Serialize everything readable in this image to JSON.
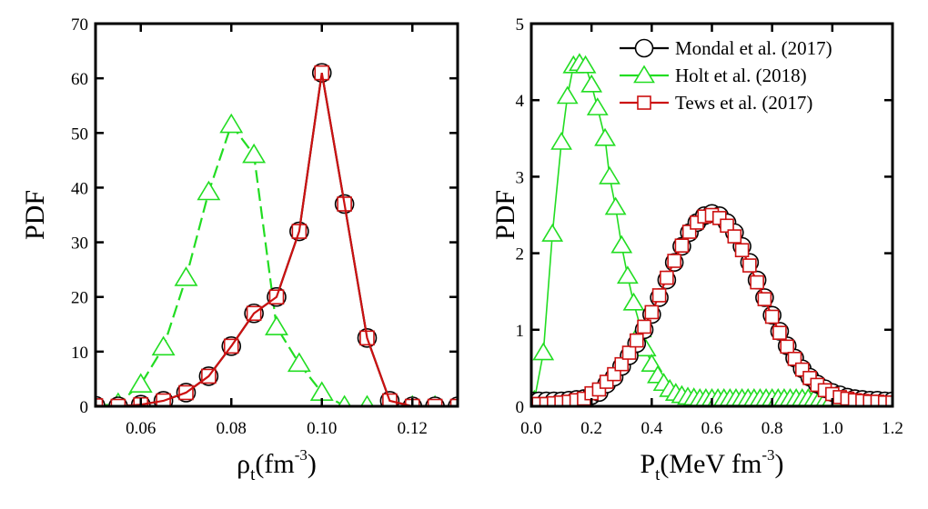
{
  "chart_data": [
    {
      "type": "line",
      "xlabel": {
        "main": "ρ",
        "sub": "t",
        "rest": "(fm",
        "sup": "-3",
        "close": ")"
      },
      "ylabel": "PDF",
      "xlim": [
        0.05,
        0.13
      ],
      "ylim": [
        0,
        70
      ],
      "xticks": [
        0.06,
        0.08,
        0.1,
        0.12
      ],
      "xtick_labels": [
        "0.06",
        "0.08",
        "0.10",
        "0.12"
      ],
      "yticks": [
        0,
        10,
        20,
        30,
        40,
        50,
        60,
        70
      ],
      "ytick_labels": [
        "0",
        "10",
        "20",
        "30",
        "40",
        "50",
        "60",
        "70"
      ],
      "grid": false,
      "series": [
        {
          "key": "holt",
          "x": [
            0.05,
            0.055,
            0.06,
            0.065,
            0.07,
            0.075,
            0.08,
            0.085,
            0.09,
            0.095,
            0.1,
            0.105,
            0.11,
            0.115,
            0.12,
            0.125,
            0.13
          ],
          "y": [
            0,
            0.5,
            4,
            10.8,
            23.5,
            39.2,
            51.5,
            46,
            14.5,
            7.8,
            2.5,
            0,
            0,
            0,
            0,
            0,
            0
          ]
        },
        {
          "key": "mondal",
          "x": [
            0.05,
            0.055,
            0.06,
            0.065,
            0.07,
            0.075,
            0.08,
            0.085,
            0.09,
            0.095,
            0.1,
            0.105,
            0.11,
            0.115,
            0.12,
            0.125,
            0.13
          ],
          "y": [
            0.1,
            0,
            0.3,
            1,
            2.5,
            5.5,
            11,
            17,
            20,
            32,
            61,
            37,
            12.5,
            1,
            0,
            0,
            0
          ]
        },
        {
          "key": "tews",
          "x": [
            0.05,
            0.055,
            0.06,
            0.065,
            0.07,
            0.075,
            0.08,
            0.085,
            0.09,
            0.095,
            0.1,
            0.105,
            0.11,
            0.115,
            0.12,
            0.125,
            0.13
          ],
          "y": [
            0.1,
            0,
            0.3,
            1,
            2.5,
            5.5,
            11,
            17,
            20,
            32,
            61,
            37,
            12.5,
            1,
            0,
            0,
            0
          ]
        }
      ]
    },
    {
      "type": "line",
      "xlabel": {
        "main": "P",
        "sub": "t",
        "rest": "(MeV fm",
        "sup": "-3",
        "close": ")"
      },
      "ylabel": "PDF",
      "xlim": [
        0,
        1.2
      ],
      "ylim": [
        0,
        5
      ],
      "xticks": [
        0,
        0.2,
        0.4,
        0.6,
        0.8,
        1.0,
        1.2
      ],
      "xtick_labels": [
        "0.0",
        "0.2",
        "0.4",
        "0.6",
        "0.8",
        "1.0",
        "1.2"
      ],
      "yticks": [
        0,
        1,
        2,
        3,
        4,
        5
      ],
      "ytick_labels": [
        "0",
        "1",
        "2",
        "3",
        "4",
        "5"
      ],
      "grid": false,
      "legend_position": "top-right",
      "series": [
        {
          "key": "holt",
          "x": [
            0.01,
            0.04,
            0.07,
            0.1,
            0.12,
            0.14,
            0.16,
            0.18,
            0.2,
            0.22,
            0.245,
            0.26,
            0.28,
            0.3,
            0.32,
            0.34,
            0.365,
            0.38,
            0.4,
            0.42,
            0.44,
            0.46,
            0.48,
            0.5,
            0.52,
            0.54,
            0.56,
            0.58,
            0.6,
            0.62,
            0.64,
            0.66,
            0.68,
            0.7,
            0.72,
            0.74,
            0.76,
            0.78,
            0.8,
            0.82,
            0.84,
            0.86,
            0.88,
            0.9,
            0.92,
            0.94,
            0.96,
            0.98,
            1.0
          ],
          "y": [
            0.08,
            0.7,
            2.25,
            3.45,
            4.05,
            4.45,
            4.48,
            4.45,
            4.2,
            3.9,
            3.5,
            3.0,
            2.6,
            2.1,
            1.7,
            1.35,
            1.0,
            0.75,
            0.55,
            0.4,
            0.3,
            0.22,
            0.17,
            0.14,
            0.12,
            0.11,
            0.1,
            0.1,
            0.1,
            0.1,
            0.1,
            0.1,
            0.1,
            0.1,
            0.1,
            0.1,
            0.1,
            0.1,
            0.1,
            0.1,
            0.1,
            0.1,
            0.1,
            0.1,
            0.1,
            0.1,
            0.1,
            0.1,
            0.1
          ]
        },
        {
          "key": "mondal",
          "x": [
            0,
            0.025,
            0.05,
            0.075,
            0.1,
            0.125,
            0.15,
            0.175,
            0.2,
            0.225,
            0.25,
            0.275,
            0.3,
            0.325,
            0.35,
            0.375,
            0.4,
            0.425,
            0.45,
            0.475,
            0.5,
            0.525,
            0.55,
            0.575,
            0.6,
            0.625,
            0.65,
            0.675,
            0.7,
            0.725,
            0.75,
            0.775,
            0.8,
            0.825,
            0.85,
            0.875,
            0.9,
            0.925,
            0.95,
            0.975,
            1.0,
            1.025,
            1.05,
            1.075,
            1.1,
            1.125,
            1.15,
            1.175,
            1.2
          ],
          "y": [
            0.07,
            0.07,
            0.07,
            0.07,
            0.07,
            0.08,
            0.09,
            0.1,
            0.14,
            0.18,
            0.29,
            0.38,
            0.52,
            0.66,
            0.82,
            1.0,
            1.2,
            1.42,
            1.65,
            1.88,
            2.09,
            2.27,
            2.4,
            2.49,
            2.52,
            2.49,
            2.4,
            2.27,
            2.09,
            1.88,
            1.65,
            1.42,
            1.19,
            0.98,
            0.79,
            0.63,
            0.49,
            0.38,
            0.29,
            0.23,
            0.18,
            0.15,
            0.12,
            0.1,
            0.09,
            0.08,
            0.08,
            0.07,
            0.07
          ]
        },
        {
          "key": "tews",
          "x": [
            0,
            0.025,
            0.05,
            0.075,
            0.1,
            0.125,
            0.15,
            0.175,
            0.2,
            0.225,
            0.25,
            0.275,
            0.3,
            0.325,
            0.35,
            0.375,
            0.4,
            0.425,
            0.45,
            0.475,
            0.5,
            0.525,
            0.55,
            0.575,
            0.6,
            0.625,
            0.65,
            0.675,
            0.7,
            0.725,
            0.75,
            0.775,
            0.8,
            0.825,
            0.85,
            0.875,
            0.9,
            0.925,
            0.95,
            0.975,
            1.0,
            1.025,
            1.05,
            1.075,
            1.1,
            1.125,
            1.15,
            1.175,
            1.2
          ],
          "y": [
            0.03,
            0.03,
            0.03,
            0.04,
            0.05,
            0.06,
            0.08,
            0.1,
            0.17,
            0.22,
            0.32,
            0.42,
            0.55,
            0.7,
            0.86,
            1.04,
            1.23,
            1.45,
            1.68,
            1.9,
            2.1,
            2.28,
            2.4,
            2.48,
            2.5,
            2.46,
            2.36,
            2.22,
            2.04,
            1.84,
            1.62,
            1.4,
            1.17,
            0.96,
            0.78,
            0.62,
            0.48,
            0.37,
            0.28,
            0.21,
            0.16,
            0.12,
            0.1,
            0.08,
            0.07,
            0.06,
            0.06,
            0.05,
            0.05
          ]
        }
      ]
    }
  ],
  "legend": [
    {
      "key": "mondal",
      "label": "Mondal et al. (2017)",
      "marker": "circle",
      "color": "#000000"
    },
    {
      "key": "holt",
      "label": "Holt et al. (2018)",
      "marker": "triangle",
      "color": "#22dd22"
    },
    {
      "key": "tews",
      "label": "Tews et al. (2017)",
      "marker": "square",
      "color": "#cc1111"
    }
  ],
  "colors": {
    "mondal": "#000000",
    "holt": "#22dd22",
    "tews": "#cc1111",
    "axes": "#000000"
  }
}
